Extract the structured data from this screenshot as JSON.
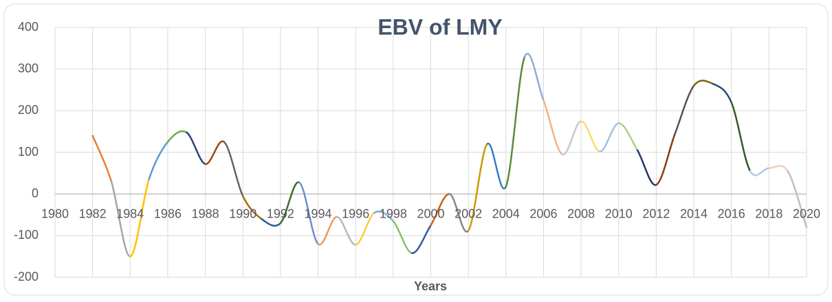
{
  "chart_data": {
    "type": "line",
    "title": "EBV of LMY",
    "x_label": "Years",
    "x": [
      1982,
      1983,
      1984,
      1985,
      1986,
      1987,
      1988,
      1989,
      1990,
      1991,
      1992,
      1993,
      1994,
      1995,
      1996,
      1997,
      1998,
      1999,
      2000,
      2001,
      2002,
      2003,
      2004,
      2005,
      2006,
      2007,
      2008,
      2009,
      2010,
      2011,
      2012,
      2013,
      2014,
      2015,
      2016,
      2017,
      2018,
      2019,
      2020
    ],
    "values": [
      140,
      30,
      -150,
      35,
      125,
      148,
      72,
      125,
      -5,
      -60,
      -70,
      28,
      -120,
      -55,
      -122,
      -45,
      -65,
      -142,
      -75,
      0,
      -88,
      120,
      18,
      330,
      225,
      95,
      175,
      102,
      170,
      105,
      22,
      145,
      260,
      265,
      220,
      55,
      62,
      55,
      -80
    ],
    "segment_colors": [
      "#ED7D31",
      "#A5A5A5",
      "#FFC000",
      "#5B9BD5",
      "#70AD47",
      "#264478",
      "#9E480E",
      "#636363",
      "#997300",
      "#255E91",
      "#43682B",
      "#698ED0",
      "#F1975A",
      "#B7B7B7",
      "#FFCD33",
      "#7CAFDD",
      "#8CC168",
      "#335AA1",
      "#D26012",
      "#848484",
      "#CC9A00",
      "#327DC2",
      "#5A8A39",
      "#8FAADC",
      "#F4B183",
      "#C9C9C9",
      "#FFD966",
      "#9DC3E6",
      "#A9D18E",
      "#203864",
      "#843C0C",
      "#525252",
      "#7F6000",
      "#1F4E79",
      "#385723",
      "#B4C7E7",
      "#F8CBAD",
      "#BFBFBF"
    ],
    "xlim": [
      1980,
      2020
    ],
    "xticks": [
      1980,
      1982,
      1984,
      1986,
      1988,
      1990,
      1992,
      1994,
      1996,
      1998,
      2000,
      2002,
      2004,
      2006,
      2008,
      2010,
      2012,
      2014,
      2016,
      2018,
      2020
    ],
    "ylim": [
      -200,
      400
    ],
    "yticks": [
      -200,
      -100,
      0,
      100,
      200,
      300,
      400
    ],
    "grid": true
  }
}
